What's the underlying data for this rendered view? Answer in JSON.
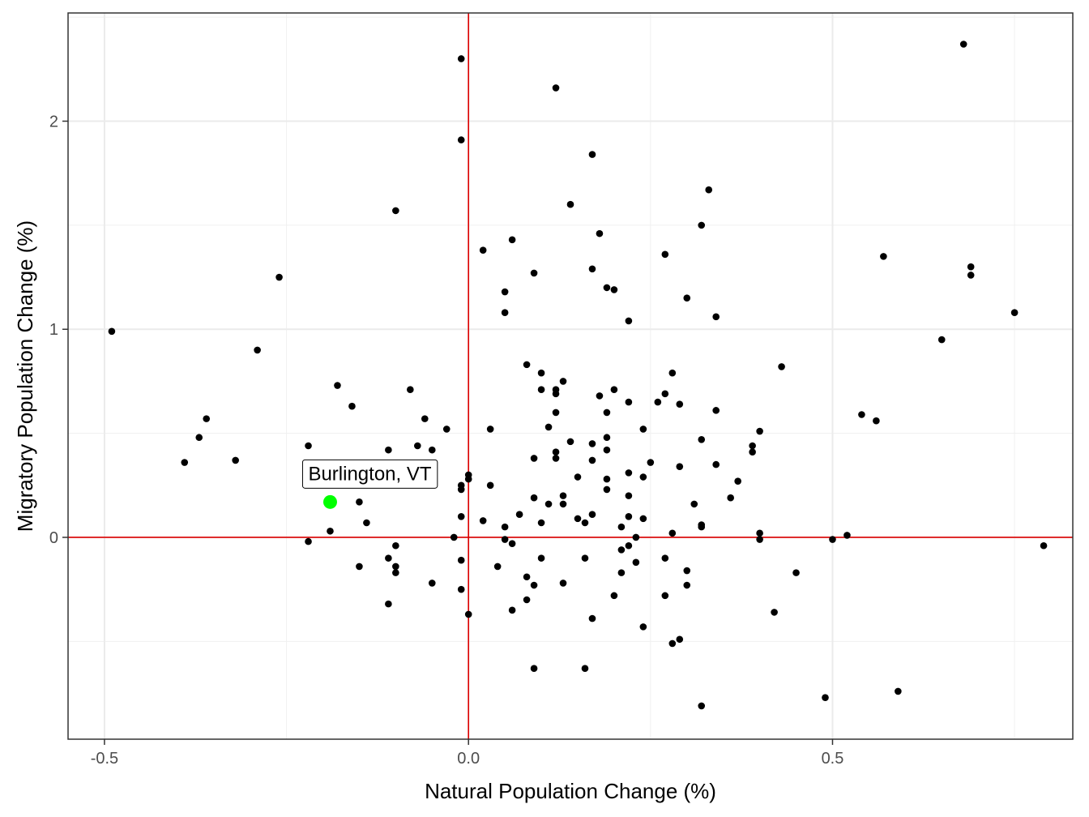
{
  "chart_data": {
    "type": "scatter",
    "title": "",
    "xlabel": "Natural Population Change (%)",
    "ylabel": "Migratory Population Change (%)",
    "xlim": [
      -0.55,
      0.83
    ],
    "ylim": [
      -0.97,
      2.52
    ],
    "x_ticks": [
      -0.5,
      0.0,
      0.5
    ],
    "x_tick_labels": [
      "-0.5",
      "0.0",
      "0.5"
    ],
    "y_ticks": [
      0,
      1,
      2
    ],
    "y_tick_labels": [
      "0",
      "1",
      "2"
    ],
    "grid": true,
    "reference_lines": {
      "x": 0,
      "y": 0,
      "color": "#dd0000"
    },
    "point_color": "#000000",
    "highlight_color": "#00ff00",
    "highlight": {
      "label": "Burlington, VT",
      "x": -0.19,
      "y": 0.17
    },
    "points": [
      {
        "x": -0.49,
        "y": 0.99
      },
      {
        "x": -0.39,
        "y": 0.36
      },
      {
        "x": -0.37,
        "y": 0.48
      },
      {
        "x": -0.36,
        "y": 0.57
      },
      {
        "x": -0.32,
        "y": 0.37
      },
      {
        "x": -0.29,
        "y": 0.9
      },
      {
        "x": -0.26,
        "y": 1.25
      },
      {
        "x": -0.22,
        "y": 0.44
      },
      {
        "x": -0.22,
        "y": -0.02
      },
      {
        "x": -0.18,
        "y": 0.73
      },
      {
        "x": -0.19,
        "y": 0.03
      },
      {
        "x": -0.16,
        "y": 0.63
      },
      {
        "x": -0.15,
        "y": 0.17
      },
      {
        "x": -0.15,
        "y": -0.14
      },
      {
        "x": -0.14,
        "y": 0.07
      },
      {
        "x": -0.11,
        "y": 0.42
      },
      {
        "x": -0.11,
        "y": -0.1
      },
      {
        "x": -0.11,
        "y": -0.32
      },
      {
        "x": -0.1,
        "y": 1.57
      },
      {
        "x": -0.1,
        "y": -0.04
      },
      {
        "x": -0.1,
        "y": -0.14
      },
      {
        "x": -0.1,
        "y": -0.17
      },
      {
        "x": -0.08,
        "y": 0.71
      },
      {
        "x": -0.07,
        "y": 0.44
      },
      {
        "x": -0.06,
        "y": 0.57
      },
      {
        "x": -0.05,
        "y": 0.42
      },
      {
        "x": -0.05,
        "y": -0.22
      },
      {
        "x": -0.03,
        "y": 0.52
      },
      {
        "x": -0.02,
        "y": 0.0
      },
      {
        "x": -0.01,
        "y": 2.3
      },
      {
        "x": -0.01,
        "y": 1.91
      },
      {
        "x": -0.01,
        "y": 0.25
      },
      {
        "x": -0.01,
        "y": 0.23
      },
      {
        "x": -0.01,
        "y": 0.1
      },
      {
        "x": -0.01,
        "y": -0.11
      },
      {
        "x": -0.01,
        "y": -0.25
      },
      {
        "x": 0.0,
        "y": 0.3
      },
      {
        "x": 0.0,
        "y": 0.28
      },
      {
        "x": 0.0,
        "y": -0.37
      },
      {
        "x": 0.02,
        "y": 1.38
      },
      {
        "x": 0.02,
        "y": 0.08
      },
      {
        "x": 0.03,
        "y": 0.52
      },
      {
        "x": 0.03,
        "y": 0.25
      },
      {
        "x": 0.04,
        "y": -0.14
      },
      {
        "x": 0.05,
        "y": 1.18
      },
      {
        "x": 0.05,
        "y": 1.08
      },
      {
        "x": 0.05,
        "y": 0.05
      },
      {
        "x": 0.05,
        "y": -0.01
      },
      {
        "x": 0.06,
        "y": 1.43
      },
      {
        "x": 0.06,
        "y": -0.03
      },
      {
        "x": 0.06,
        "y": -0.35
      },
      {
        "x": 0.07,
        "y": 0.11
      },
      {
        "x": 0.08,
        "y": 0.83
      },
      {
        "x": 0.08,
        "y": -0.19
      },
      {
        "x": 0.08,
        "y": -0.3
      },
      {
        "x": 0.09,
        "y": 1.27
      },
      {
        "x": 0.09,
        "y": 0.38
      },
      {
        "x": 0.09,
        "y": 0.19
      },
      {
        "x": 0.09,
        "y": -0.23
      },
      {
        "x": 0.09,
        "y": -0.63
      },
      {
        "x": 0.1,
        "y": 0.79
      },
      {
        "x": 0.1,
        "y": 0.71
      },
      {
        "x": 0.1,
        "y": 0.07
      },
      {
        "x": 0.1,
        "y": -0.1
      },
      {
        "x": 0.11,
        "y": 0.53
      },
      {
        "x": 0.11,
        "y": 0.16
      },
      {
        "x": 0.12,
        "y": 2.16
      },
      {
        "x": 0.12,
        "y": 0.71
      },
      {
        "x": 0.12,
        "y": 0.69
      },
      {
        "x": 0.12,
        "y": 0.6
      },
      {
        "x": 0.12,
        "y": 0.41
      },
      {
        "x": 0.12,
        "y": 0.38
      },
      {
        "x": 0.13,
        "y": 0.75
      },
      {
        "x": 0.13,
        "y": 0.2
      },
      {
        "x": 0.13,
        "y": 0.16
      },
      {
        "x": 0.13,
        "y": -0.22
      },
      {
        "x": 0.14,
        "y": 1.6
      },
      {
        "x": 0.14,
        "y": 0.46
      },
      {
        "x": 0.15,
        "y": 0.29
      },
      {
        "x": 0.15,
        "y": 0.09
      },
      {
        "x": 0.16,
        "y": 0.07
      },
      {
        "x": 0.16,
        "y": -0.1
      },
      {
        "x": 0.16,
        "y": -0.63
      },
      {
        "x": 0.17,
        "y": 1.84
      },
      {
        "x": 0.17,
        "y": 1.29
      },
      {
        "x": 0.17,
        "y": 0.45
      },
      {
        "x": 0.17,
        "y": 0.37
      },
      {
        "x": 0.17,
        "y": 0.11
      },
      {
        "x": 0.17,
        "y": -0.39
      },
      {
        "x": 0.18,
        "y": 1.46
      },
      {
        "x": 0.18,
        "y": 0.68
      },
      {
        "x": 0.19,
        "y": 1.2
      },
      {
        "x": 0.19,
        "y": 0.6
      },
      {
        "x": 0.19,
        "y": 0.48
      },
      {
        "x": 0.19,
        "y": 0.42
      },
      {
        "x": 0.19,
        "y": 0.28
      },
      {
        "x": 0.19,
        "y": 0.23
      },
      {
        "x": 0.2,
        "y": 1.19
      },
      {
        "x": 0.2,
        "y": 0.71
      },
      {
        "x": 0.2,
        "y": -0.28
      },
      {
        "x": 0.21,
        "y": 0.05
      },
      {
        "x": 0.21,
        "y": -0.06
      },
      {
        "x": 0.21,
        "y": -0.17
      },
      {
        "x": 0.22,
        "y": 1.04
      },
      {
        "x": 0.22,
        "y": 0.65
      },
      {
        "x": 0.22,
        "y": 0.31
      },
      {
        "x": 0.22,
        "y": 0.2
      },
      {
        "x": 0.22,
        "y": 0.1
      },
      {
        "x": 0.22,
        "y": -0.04
      },
      {
        "x": 0.23,
        "y": 0.0
      },
      {
        "x": 0.23,
        "y": -0.12
      },
      {
        "x": 0.24,
        "y": 0.52
      },
      {
        "x": 0.24,
        "y": 0.29
      },
      {
        "x": 0.24,
        "y": 0.09
      },
      {
        "x": 0.24,
        "y": -0.43
      },
      {
        "x": 0.25,
        "y": 0.36
      },
      {
        "x": 0.26,
        "y": 0.65
      },
      {
        "x": 0.27,
        "y": 1.36
      },
      {
        "x": 0.27,
        "y": 0.69
      },
      {
        "x": 0.27,
        "y": -0.1
      },
      {
        "x": 0.27,
        "y": -0.28
      },
      {
        "x": 0.28,
        "y": 0.79
      },
      {
        "x": 0.28,
        "y": 0.02
      },
      {
        "x": 0.28,
        "y": -0.51
      },
      {
        "x": 0.29,
        "y": 0.64
      },
      {
        "x": 0.29,
        "y": 0.34
      },
      {
        "x": 0.29,
        "y": -0.49
      },
      {
        "x": 0.3,
        "y": 1.15
      },
      {
        "x": 0.3,
        "y": -0.16
      },
      {
        "x": 0.3,
        "y": -0.23
      },
      {
        "x": 0.31,
        "y": 0.16
      },
      {
        "x": 0.32,
        "y": 1.5
      },
      {
        "x": 0.32,
        "y": 0.47
      },
      {
        "x": 0.32,
        "y": 0.06
      },
      {
        "x": 0.32,
        "y": 0.05
      },
      {
        "x": 0.32,
        "y": -0.81
      },
      {
        "x": 0.33,
        "y": 1.67
      },
      {
        "x": 0.34,
        "y": 1.06
      },
      {
        "x": 0.34,
        "y": 0.61
      },
      {
        "x": 0.34,
        "y": 0.35
      },
      {
        "x": 0.36,
        "y": 0.19
      },
      {
        "x": 0.37,
        "y": 0.27
      },
      {
        "x": 0.39,
        "y": 0.44
      },
      {
        "x": 0.39,
        "y": 0.41
      },
      {
        "x": 0.4,
        "y": 0.51
      },
      {
        "x": 0.4,
        "y": 0.02
      },
      {
        "x": 0.4,
        "y": -0.01
      },
      {
        "x": 0.42,
        "y": -0.36
      },
      {
        "x": 0.43,
        "y": 0.82
      },
      {
        "x": 0.45,
        "y": -0.17
      },
      {
        "x": 0.49,
        "y": -0.77
      },
      {
        "x": 0.5,
        "y": -0.01
      },
      {
        "x": 0.52,
        "y": 0.01
      },
      {
        "x": 0.54,
        "y": 0.59
      },
      {
        "x": 0.56,
        "y": 0.56
      },
      {
        "x": 0.57,
        "y": 1.35
      },
      {
        "x": 0.59,
        "y": -0.74
      },
      {
        "x": 0.65,
        "y": 0.95
      },
      {
        "x": 0.68,
        "y": 2.37
      },
      {
        "x": 0.69,
        "y": 1.3
      },
      {
        "x": 0.69,
        "y": 1.26
      },
      {
        "x": 0.75,
        "y": 1.08
      },
      {
        "x": 0.79,
        "y": -0.04
      }
    ]
  }
}
